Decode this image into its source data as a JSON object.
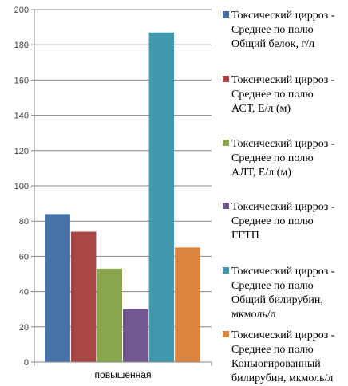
{
  "chart_data": {
    "type": "bar",
    "categories": [
      "повышенная"
    ],
    "ylim": [
      0,
      200
    ],
    "yticks": [
      0,
      20,
      40,
      60,
      80,
      100,
      120,
      140,
      160,
      180,
      200
    ],
    "grid": true,
    "legend_position": "right",
    "series": [
      {
        "name": "Токсический цирроз - Среднее по полю Общий белок, г/л",
        "name_lines": [
          "Токсический цирроз -",
          "Среднее по полю",
          "Общий белок, г/л"
        ],
        "values": [
          84
        ],
        "color": "#4572A7"
      },
      {
        "name": "Токсический цирроз - Среднее по полю АСТ, Е/л (м)",
        "name_lines": [
          "Токсический цирроз -",
          "Среднее по полю",
          "АСТ, Е/л (м)"
        ],
        "values": [
          74
        ],
        "color": "#AA4643"
      },
      {
        "name": "Токсический цирроз - Среднее по полю АЛТ, Е/л (м)",
        "name_lines": [
          "Токсический цирроз -",
          "Среднее по полю",
          "АЛТ, Е/л (м)"
        ],
        "values": [
          53
        ],
        "color": "#89A54E"
      },
      {
        "name": "Токсический цирроз - Среднее по полю ГГТП",
        "name_lines": [
          "Токсический цирроз -",
          "Среднее по полю",
          "ГГТП"
        ],
        "values": [
          30
        ],
        "color": "#71588F"
      },
      {
        "name": "Токсический цирроз - Среднее по полю Общий билирубин, мкмоль/л",
        "name_lines": [
          "Токсический цирроз -",
          "Среднее по полю",
          "Общий билирубин,",
          "мкмоль/л"
        ],
        "values": [
          187
        ],
        "color": "#4198AF"
      },
      {
        "name": "Токсический цирроз - Среднее по полю Коньюгированный билирубин, мкмоль/л",
        "name_lines": [
          "Токсический цирроз -",
          "Среднее по полю",
          "Коньюгированный",
          "билирубин, мкмоль/л"
        ],
        "values": [
          65
        ],
        "color": "#DB843D"
      }
    ]
  }
}
